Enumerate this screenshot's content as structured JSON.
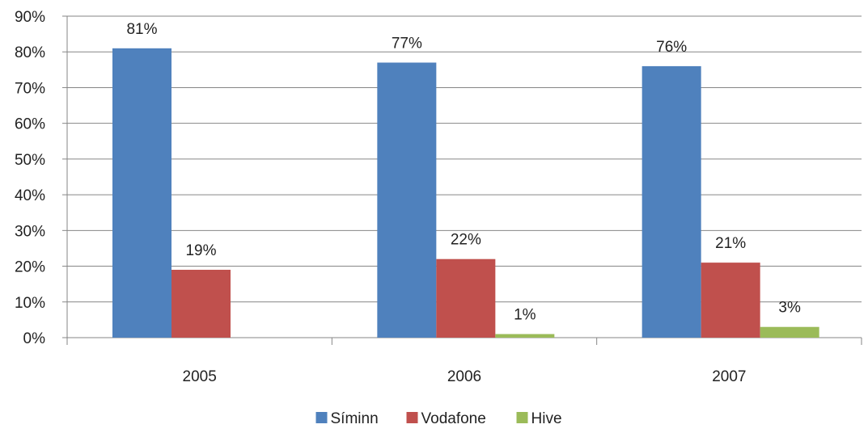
{
  "chart_data": {
    "type": "bar",
    "categories": [
      "2005",
      "2006",
      "2007"
    ],
    "series": [
      {
        "name": "Síminn",
        "values": [
          81,
          77,
          76
        ],
        "labels": [
          "81%",
          "77%",
          "76%"
        ],
        "color": "#4f81bd"
      },
      {
        "name": "Vodafone",
        "values": [
          19,
          22,
          21
        ],
        "labels": [
          "19%",
          "22%",
          "21%"
        ],
        "color": "#c0504d"
      },
      {
        "name": "Hive",
        "values": [
          0,
          1,
          3
        ],
        "labels": [
          "",
          "1%",
          "3%"
        ],
        "color": "#9bbb59"
      }
    ],
    "y_ticks": [
      "0%",
      "10%",
      "20%",
      "30%",
      "40%",
      "50%",
      "60%",
      "70%",
      "80%",
      "90%"
    ],
    "ylim": [
      0,
      90
    ],
    "y_unit": "%",
    "grid": true,
    "grid_color": "#868686",
    "legend": "bottom"
  }
}
